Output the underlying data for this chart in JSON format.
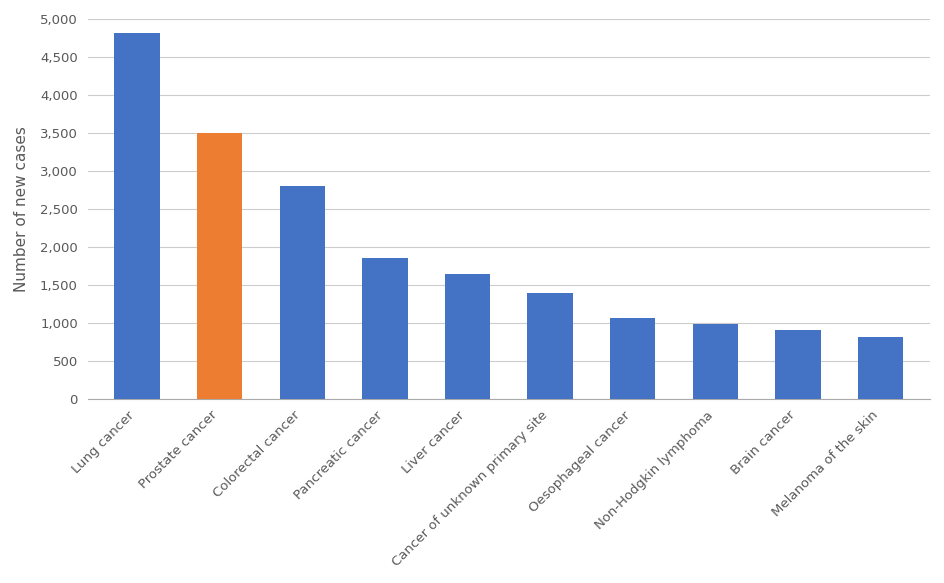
{
  "categories": [
    "Lung cancer",
    "Prostate cancer",
    "Colorectal cancer",
    "Pancreatic cancer",
    "Liver cancer",
    "Cancer of unknown primary site",
    "Oesophageal cancer",
    "Non-Hodgkin lymphoma",
    "Brain cancer",
    "Melanoma of the skin"
  ],
  "values": [
    4820,
    3500,
    2800,
    1850,
    1650,
    1400,
    1060,
    980,
    910,
    810
  ],
  "bar_colors": [
    "#4472C4",
    "#ED7D31",
    "#4472C4",
    "#4472C4",
    "#4472C4",
    "#4472C4",
    "#4472C4",
    "#4472C4",
    "#4472C4",
    "#4472C4"
  ],
  "ylabel": "Number of new cases",
  "ylim": [
    0,
    5000
  ],
  "yticks": [
    0,
    500,
    1000,
    1500,
    2000,
    2500,
    3000,
    3500,
    4000,
    4500,
    5000
  ],
  "background_color": "#ffffff",
  "grid_color": "#cccccc",
  "bar_width": 0.55,
  "ylabel_fontsize": 11,
  "tick_fontsize": 9.5,
  "label_color": "#595959"
}
